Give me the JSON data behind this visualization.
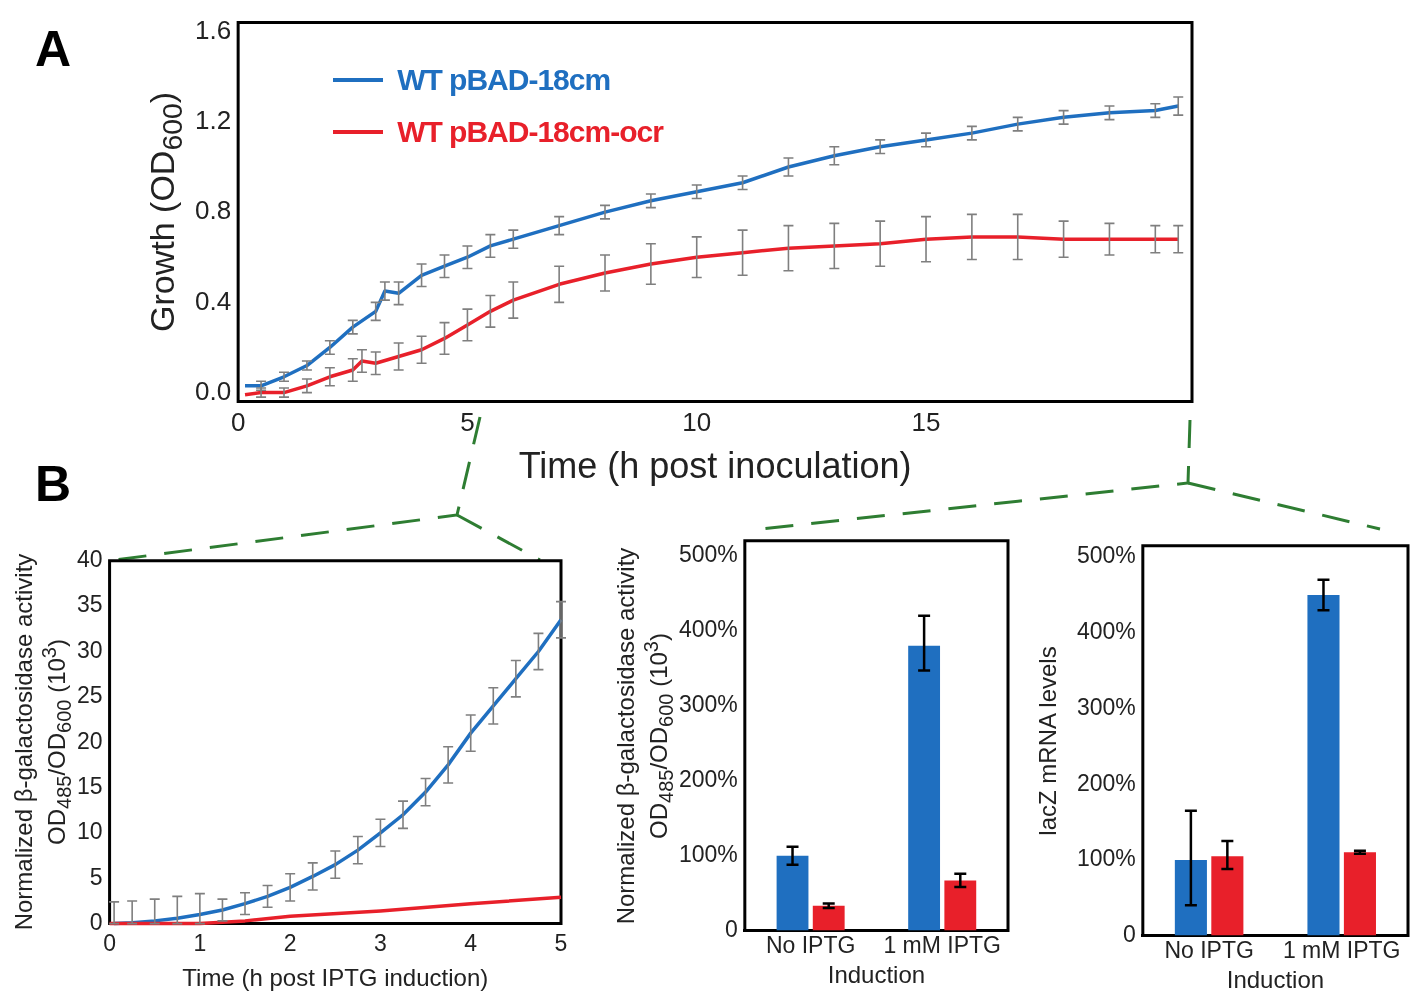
{
  "chart_data": [
    {
      "type": "line",
      "xlabel": "Time (h post inoculation)",
      "ylabel": "Growth (OD$_{600}$)",
      "xlim": [
        0,
        20.8
      ],
      "xticks": [
        0,
        5,
        10,
        15
      ],
      "ylim": [
        -0.04,
        1.64
      ],
      "yticks": [
        {
          "value": 0,
          "label": "0.0"
        },
        0.4,
        0.8,
        1.2,
        1.6
      ],
      "legend": "top left",
      "annotations": [
        "A"
      ],
      "series": [
        {
          "name": "WT pBAD-18cm",
          "color": "#1f6fc0",
          "x": [
            0.15,
            0.5,
            1,
            1.5,
            2,
            2.5,
            3,
            3.2,
            3.5,
            4,
            4.5,
            5,
            5.5,
            6,
            7,
            8,
            9,
            10,
            11,
            12,
            13,
            14,
            15,
            16,
            17,
            18,
            19,
            20,
            20.5
          ],
          "values": [
            0.03,
            0.03,
            0.07,
            0.12,
            0.2,
            0.29,
            0.36,
            0.45,
            0.44,
            0.52,
            0.56,
            0.6,
            0.65,
            0.68,
            0.74,
            0.8,
            0.85,
            0.89,
            0.93,
            1.0,
            1.05,
            1.09,
            1.12,
            1.15,
            1.19,
            1.22,
            1.24,
            1.25,
            1.27
          ],
          "errors": [
            null,
            0.02,
            0.02,
            0.02,
            0.03,
            0.03,
            0.04,
            0.04,
            0.05,
            0.05,
            0.05,
            0.05,
            0.05,
            0.04,
            0.04,
            0.03,
            0.03,
            0.03,
            0.03,
            0.04,
            0.04,
            0.03,
            0.03,
            0.03,
            0.03,
            0.03,
            0.03,
            0.03,
            0.04
          ]
        },
        {
          "name": "WT pBAD-18cm-ocr",
          "color": "#e8202a",
          "x": [
            0.15,
            0.5,
            1,
            1.5,
            2,
            2.5,
            2.7,
            3,
            3.5,
            4,
            4.5,
            5,
            5.5,
            6,
            7,
            8,
            9,
            10,
            11,
            12,
            13,
            14,
            15,
            16,
            17,
            18,
            19,
            20,
            20.5
          ],
          "values": [
            -0.01,
            0,
            0,
            0.03,
            0.07,
            0.1,
            0.14,
            0.13,
            0.16,
            0.19,
            0.24,
            0.3,
            0.36,
            0.41,
            0.48,
            0.53,
            0.57,
            0.6,
            0.62,
            0.64,
            0.65,
            0.66,
            0.68,
            0.69,
            0.69,
            0.68,
            0.68,
            0.68,
            0.68
          ],
          "errors": [
            null,
            0.02,
            0.02,
            0.03,
            0.04,
            0.05,
            0.05,
            0.05,
            0.06,
            0.06,
            0.07,
            0.07,
            0.07,
            0.08,
            0.08,
            0.08,
            0.09,
            0.09,
            0.1,
            0.1,
            0.1,
            0.1,
            0.1,
            0.1,
            0.1,
            0.08,
            0.07,
            0.06,
            0.06
          ]
        }
      ]
    },
    {
      "type": "line",
      "xlabel": "Time (h post IPTG induction)",
      "ylabel": "Normalized β-galactosidase activity\nOD$_{485}$/OD$_{600}$ (10$^{3}$)",
      "xlim": [
        0,
        5
      ],
      "xticks": [
        0,
        1,
        2,
        3,
        4,
        5
      ],
      "ylim": [
        0,
        40
      ],
      "yticks": [
        0,
        5,
        10,
        15,
        20,
        25,
        30,
        35,
        40
      ],
      "annotations": [
        "B"
      ],
      "series": [
        {
          "color": "#1f6fc0",
          "x": [
            0.05,
            0.25,
            0.5,
            0.75,
            1,
            1.25,
            1.5,
            1.75,
            2,
            2.25,
            2.5,
            2.75,
            3,
            3.25,
            3.5,
            3.75,
            4,
            4.25,
            4.5,
            4.75,
            5
          ],
          "values": [
            0,
            0.1,
            0.3,
            0.6,
            1,
            1.5,
            2.2,
            3,
            4,
            5.2,
            6.5,
            8.1,
            10,
            12,
            14.5,
            17.5,
            21,
            24,
            27,
            30,
            33.5
          ],
          "errors": [
            [
              0,
              2.4
            ],
            [
              0,
              2.5
            ],
            [
              0,
              2.7
            ],
            [
              0,
              3
            ],
            [
              0,
              3.3
            ],
            [
              0.3,
              2.7
            ],
            [
              1,
              3.4
            ],
            [
              1.8,
              4.2
            ],
            1.5,
            1.5,
            1.5,
            1.5,
            1.5,
            1.5,
            1.5,
            2,
            2,
            2,
            2,
            2,
            2
          ]
        },
        {
          "color": "#e8202a",
          "x": [
            0,
            1,
            1.5,
            2,
            3,
            4,
            5
          ],
          "values": [
            0,
            0,
            0.3,
            0.8,
            1.4,
            2.2,
            2.9
          ]
        }
      ]
    },
    {
      "type": "bar",
      "xlabel": "Induction",
      "ylabel": "Normalized β-galactosidase activity\nOD$_{485}$/OD$_{600}$ (10$^{3}$)",
      "categories": [
        "No IPTG",
        "1 mM IPTG"
      ],
      "ylim": [
        0,
        520
      ],
      "yticks": [
        0,
        {
          "value": 100,
          "label": "100%"
        },
        {
          "value": 200,
          "label": "200%"
        },
        {
          "value": 300,
          "label": "300%"
        },
        {
          "value": 400,
          "label": "400%"
        },
        {
          "value": 500,
          "label": "500%"
        }
      ],
      "series": [
        {
          "color": "#1f6fc0",
          "values": [
            100,
            380
          ],
          "errors": [
            12,
            [
              347,
              420
            ]
          ]
        },
        {
          "color": "#e8202a",
          "values": [
            33,
            67
          ],
          "errors": [
            3,
            9
          ]
        }
      ]
    },
    {
      "type": "bar",
      "xlabel": "Induction",
      "ylabel": "lacZ mRNA levels",
      "categories": [
        "No IPTG",
        "1 mM IPTG"
      ],
      "ylim": [
        0,
        515
      ],
      "yticks": [
        0,
        {
          "value": 100,
          "label": "100%"
        },
        {
          "value": 200,
          "label": "200%"
        },
        {
          "value": 300,
          "label": "300%"
        },
        {
          "value": 400,
          "label": "400%"
        },
        {
          "value": 500,
          "label": "500%"
        }
      ],
      "series": [
        {
          "color": "#1f6fc0",
          "values": [
            100,
            450
          ],
          "errors": [
            [
              40,
              165
            ],
            [
              430,
              470
            ]
          ]
        },
        {
          "color": "#e8202a",
          "values": [
            105,
            110
          ],
          "errors": [
            [
              88,
              125
            ],
            2
          ]
        }
      ]
    }
  ]
}
